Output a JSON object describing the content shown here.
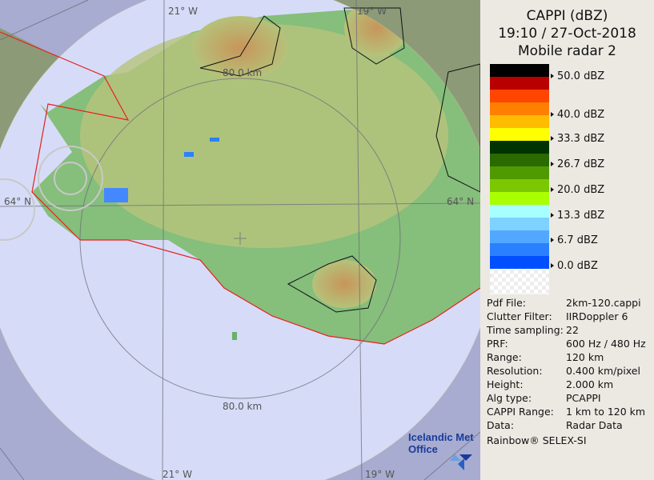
{
  "header": {
    "line1": "CAPPI (dBZ)",
    "line2": "19:10 / 27-Oct-2018",
    "line3": "Mobile radar 2"
  },
  "legend": {
    "colors": [
      "#000000",
      "#b90000",
      "#ff4500",
      "#ff7f00",
      "#ffbb00",
      "#ffff00",
      "#003300",
      "#2a6a00",
      "#4f9a00",
      "#7cc800",
      "#aaff00",
      "#a8ffff",
      "#7dd2ff",
      "#52a8ff",
      "#2a80ff",
      "#0050ff",
      "#ffffff"
    ],
    "labels": [
      "50.0 dBZ",
      "40.0 dBZ",
      "33.3 dBZ",
      "26.7 dBZ",
      "20.0 dBZ",
      "13.3 dBZ",
      "6.7 dBZ",
      "0.0 dBZ"
    ]
  },
  "info": [
    {
      "key": "Pdf File:",
      "value": "2km-120.cappi"
    },
    {
      "key": "Clutter Filter:",
      "value": "IIRDoppler 6"
    },
    {
      "key": "Time sampling:",
      "value": "22"
    },
    {
      "key": "PRF:",
      "value": "600 Hz / 480 Hz"
    },
    {
      "key": "Range:",
      "value": "120 km"
    },
    {
      "key": "Resolution:",
      "value": "0.400 km/pixel"
    },
    {
      "key": "Height:",
      "value": "2.000 km"
    },
    {
      "key": "Alg type:",
      "value": "PCAPPI"
    },
    {
      "key": "CAPPI Range:",
      "value": "1 km to 120 km"
    },
    {
      "key": "Data:",
      "value": "Radar Data"
    }
  ],
  "credit": "Rainbow® SELEX-SI",
  "map": {
    "lon_top_left": "21° W",
    "lon_top_right": "19° W",
    "lon_bottom_left": "21° W",
    "lon_bottom_right": "19° W",
    "lat_left": "64° N",
    "lat_right": "64° N",
    "range_top": "80.0 km",
    "range_bottom": "80.0 km",
    "logo": "Icelandic Met Office"
  }
}
